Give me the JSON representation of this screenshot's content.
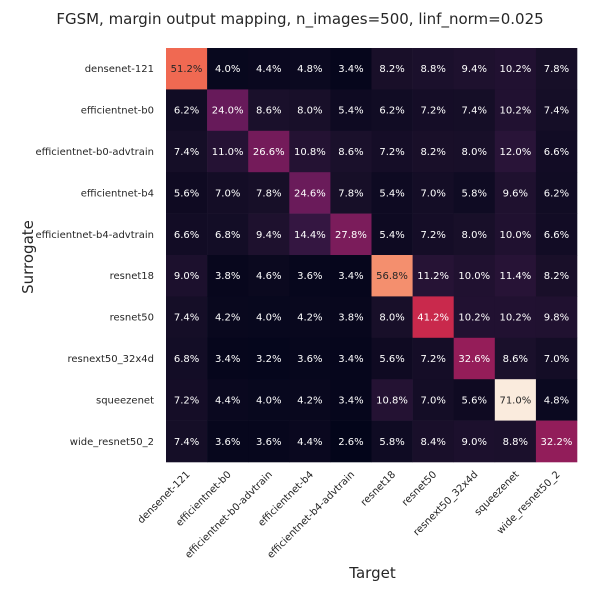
{
  "chart_data": {
    "type": "heatmap",
    "title": "FGSM, margin output mapping, n_images=500, linf_norm=0.025",
    "xlabel": "Target",
    "ylabel": "Surrogate",
    "x_categories": [
      "densenet-121",
      "efficientnet-b0",
      "efficientnet-b0-advtrain",
      "efficientnet-b4",
      "efficientnet-b4-advtrain",
      "resnet18",
      "resnet50",
      "resnext50_32x4d",
      "squeezenet",
      "wide_resnet50_2"
    ],
    "y_categories": [
      "densenet-121",
      "efficientnet-b0",
      "efficientnet-b0-advtrain",
      "efficientnet-b4",
      "efficientnet-b4-advtrain",
      "resnet18",
      "resnet50",
      "resnext50_32x4d",
      "squeezenet",
      "wide_resnet50_2"
    ],
    "value_unit": "%",
    "values": [
      [
        51.2,
        4.0,
        4.4,
        4.8,
        3.4,
        8.2,
        8.8,
        9.4,
        10.2,
        7.8
      ],
      [
        6.2,
        24.0,
        8.6,
        8.0,
        5.4,
        6.2,
        7.2,
        7.4,
        10.2,
        7.4
      ],
      [
        7.4,
        11.0,
        26.6,
        10.8,
        8.6,
        7.2,
        8.2,
        8.0,
        12.0,
        6.6
      ],
      [
        5.6,
        7.0,
        7.8,
        24.6,
        7.8,
        5.4,
        7.0,
        5.8,
        9.6,
        6.2
      ],
      [
        6.6,
        6.8,
        9.4,
        14.4,
        27.8,
        5.4,
        7.2,
        8.0,
        10.0,
        6.6
      ],
      [
        9.0,
        3.8,
        4.6,
        3.6,
        3.4,
        56.8,
        11.2,
        10.0,
        11.4,
        8.2
      ],
      [
        7.4,
        4.2,
        4.0,
        4.2,
        3.8,
        8.0,
        41.2,
        10.2,
        10.2,
        9.8
      ],
      [
        6.8,
        3.4,
        3.2,
        3.6,
        3.4,
        5.6,
        7.2,
        32.6,
        8.6,
        7.0
      ],
      [
        7.2,
        4.4,
        4.0,
        4.2,
        3.4,
        10.8,
        7.0,
        5.6,
        71.0,
        4.8
      ],
      [
        7.4,
        3.6,
        3.6,
        4.4,
        2.6,
        5.8,
        8.4,
        9.0,
        8.8,
        32.2
      ]
    ],
    "colormap": "rocket",
    "legend": "none",
    "grid": false
  }
}
